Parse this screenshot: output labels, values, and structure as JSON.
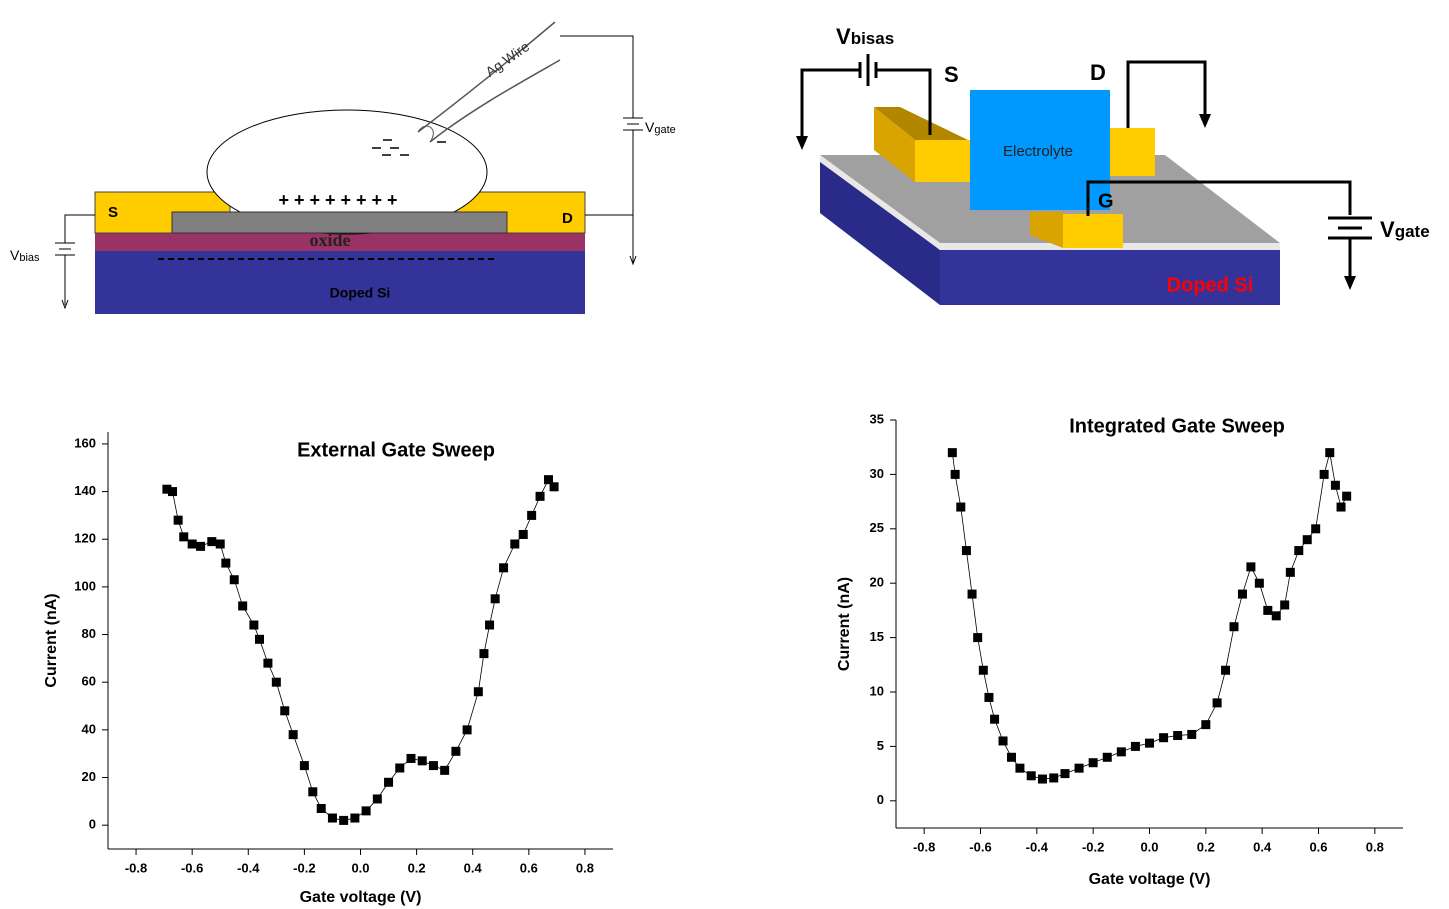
{
  "diagrams": [
    {
      "ag_wire": "Ag Wire",
      "gate_voltage": {
        "symbol": "V",
        "subscript": "gate"
      },
      "source": "S",
      "drain": "D",
      "charges": "+ + + + + + + +",
      "oxide": "oxide",
      "bias_voltage": {
        "symbol": "V",
        "subscript": "bias"
      },
      "substrate": "Doped Si"
    },
    {
      "bias_voltage": {
        "symbol": "V",
        "subscript": "bisas"
      },
      "source": "S",
      "drain": "D",
      "electrolyte": "Electrolyte",
      "gate": "G",
      "gate_voltage": {
        "symbol": "V",
        "subscript": "gate"
      },
      "substrate": "Doped Si"
    }
  ],
  "chart_data": [
    {
      "type": "scatter",
      "title": "External Gate Sweep",
      "xlabel": "Gate voltage (V)",
      "ylabel": "Current (nA)",
      "color": "#000000",
      "marker": "square",
      "connect": true,
      "x": [
        -0.69,
        -0.67,
        -0.65,
        -0.63,
        -0.6,
        -0.57,
        -0.53,
        -0.5,
        -0.48,
        -0.45,
        -0.42,
        -0.38,
        -0.36,
        -0.33,
        -0.3,
        -0.27,
        -0.24,
        -0.2,
        -0.17,
        -0.14,
        -0.1,
        -0.06,
        -0.02,
        0.02,
        0.06,
        0.1,
        0.14,
        0.18,
        0.22,
        0.26,
        0.3,
        0.34,
        0.38,
        0.42,
        0.44,
        0.46,
        0.48,
        0.51,
        0.55,
        0.58,
        0.61,
        0.64,
        0.67,
        0.69
      ],
      "values": [
        141,
        140,
        128,
        121,
        118,
        117,
        119,
        118,
        110,
        103,
        92,
        84,
        78,
        68,
        60,
        48,
        38,
        25,
        14,
        7,
        3,
        2,
        3,
        6,
        11,
        18,
        24,
        28,
        27,
        25,
        23,
        31,
        40,
        56,
        72,
        84,
        95,
        108,
        118,
        122,
        130,
        138,
        145,
        142
      ],
      "xlim": [
        -0.9,
        0.9
      ],
      "ylim": [
        -10,
        165
      ],
      "xticks": [
        -0.8,
        -0.6,
        -0.4,
        -0.2,
        {
          "value": 0,
          "label": "0.0"
        },
        0.2,
        0.4,
        0.6,
        0.8
      ],
      "yticks": [
        0,
        20,
        40,
        60,
        80,
        100,
        120,
        140,
        160
      ]
    },
    {
      "type": "scatter",
      "title": "Integrated Gate Sweep",
      "xlabel": "Gate voltage (V)",
      "ylabel": "Current (nA)",
      "color": "#000000",
      "marker": "square",
      "connect": true,
      "x": [
        -0.7,
        -0.69,
        -0.67,
        -0.65,
        -0.63,
        -0.61,
        -0.59,
        -0.57,
        -0.55,
        -0.52,
        -0.49,
        -0.46,
        -0.42,
        -0.38,
        -0.34,
        -0.3,
        -0.25,
        -0.2,
        -0.15,
        -0.1,
        -0.05,
        0,
        0.05,
        0.1,
        0.15,
        0.2,
        0.24,
        0.27,
        0.3,
        0.33,
        0.36,
        0.39,
        0.42,
        0.45,
        0.48,
        0.5,
        0.53,
        0.56,
        0.59,
        0.62,
        0.64,
        0.66,
        0.68,
        0.7
      ],
      "values": [
        32,
        30,
        27,
        23,
        19,
        15,
        12,
        9.5,
        7.5,
        5.5,
        4,
        3,
        2.3,
        2,
        2.1,
        2.5,
        3,
        3.5,
        4,
        4.5,
        5,
        5.3,
        5.8,
        6,
        6.1,
        7,
        9,
        12,
        16,
        19,
        21.5,
        20,
        17.5,
        17,
        18,
        21,
        23,
        24,
        25,
        30,
        32,
        29,
        27,
        28
      ],
      "xlim": [
        -0.9,
        0.9
      ],
      "ylim": [
        -2.5,
        35
      ],
      "xticks": [
        -0.8,
        -0.6,
        -0.4,
        -0.2,
        {
          "value": 0,
          "label": "0.0"
        },
        0.2,
        0.4,
        0.6,
        0.8
      ],
      "yticks": [
        0,
        5,
        10,
        15,
        20,
        25,
        30,
        35
      ]
    }
  ]
}
